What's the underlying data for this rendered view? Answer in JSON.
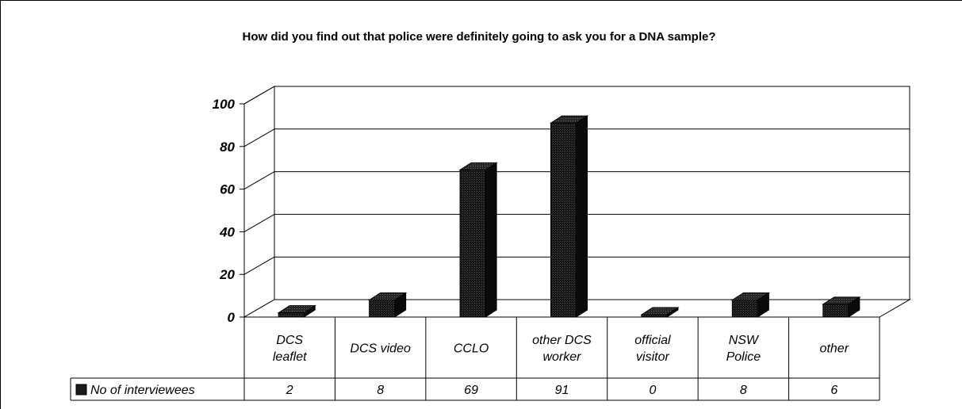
{
  "chart_data": {
    "type": "bar",
    "title": "How did you find out that police were definitely going to ask you for a DNA sample?",
    "categories": [
      [
        "DCS",
        "leaflet"
      ],
      [
        "DCS video"
      ],
      [
        "CCLO"
      ],
      [
        "other DCS",
        "worker"
      ],
      [
        "official",
        "visitor"
      ],
      [
        "NSW",
        "Police"
      ],
      [
        "other"
      ]
    ],
    "series": [
      {
        "name": "No of interviewees",
        "values": [
          2,
          8,
          69,
          91,
          0,
          8,
          6
        ]
      }
    ],
    "yticks": [
      "0",
      "20",
      "40",
      "60",
      "80",
      "100"
    ],
    "ylim": [
      0,
      100
    ],
    "grid": true,
    "legend": "data-table",
    "colors": {
      "bar_front": "#1a1a1a",
      "bar_side": "#0a0a0a",
      "bar_top": "#2e2e2e",
      "grid": "#000000",
      "background": "#ffffff"
    }
  }
}
